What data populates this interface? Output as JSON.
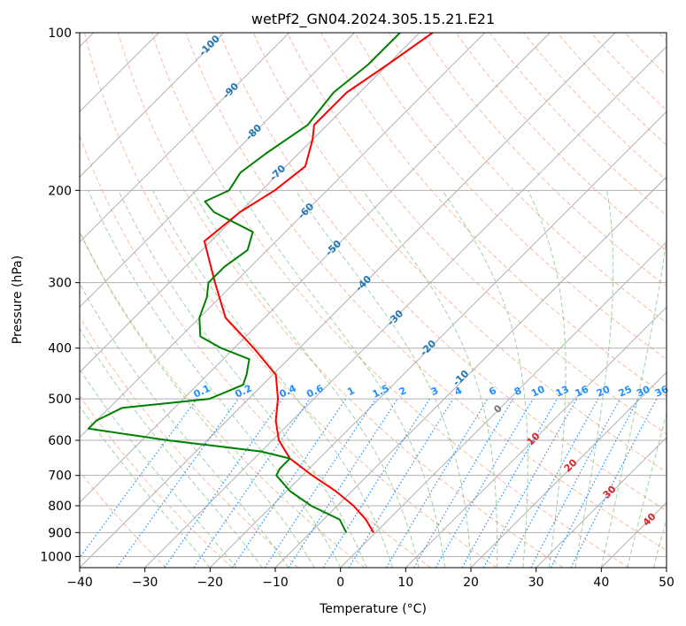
{
  "chart_data": {
    "type": "line",
    "subtype": "skew-t log-p",
    "title": "wetPf2_GN04.2024.305.15.21.E21",
    "xlabel": "Temperature (°C)",
    "ylabel": "Pressure (hPa)",
    "xlim": [
      -40,
      50
    ],
    "ylim": [
      1050,
      100
    ],
    "y_scale": "log",
    "grid": true,
    "x_ticks": [
      -40,
      -30,
      -20,
      -10,
      0,
      10,
      20,
      30,
      40,
      50
    ],
    "x_tick_labels": [
      "−40",
      "−30",
      "−20",
      "−10",
      "0",
      "10",
      "20",
      "30",
      "40",
      "50"
    ],
    "y_ticks": [
      1000,
      900,
      800,
      700,
      600,
      500,
      400,
      300,
      200,
      100
    ],
    "y_tick_labels": [
      "1000",
      "900",
      "800",
      "700",
      "600",
      "500",
      "400",
      "300",
      "200",
      "100"
    ],
    "colors": {
      "temperature": "#ff0000",
      "dewpoint": "#008000",
      "isotherm_label": "#1f77b4",
      "mixing_ratio": "#1e90ff",
      "dry_adiabat": "#f4a582",
      "moist_adiabat": "#2ca02c",
      "moist_label": "#d62728",
      "grid": "#b0b0b0"
    },
    "series": [
      {
        "kind": "temperature",
        "pressure": [
          900,
          850,
          800,
          750,
          700,
          650,
          600,
          550,
          500,
          450,
          400,
          350,
          300,
          250,
          220,
          200,
          180,
          160,
          150,
          130,
          115,
          100
        ],
        "values": [
          -0.3,
          -3.5,
          -7.5,
          -12.5,
          -18.5,
          -24.5,
          -29,
          -32.5,
          -35.5,
          -39.5,
          -47,
          -56,
          -63,
          -71,
          -70,
          -68,
          -67,
          -70,
          -72,
          -72,
          -70,
          -68
        ]
      },
      {
        "kind": "dewpoint",
        "pressure": [
          900,
          850,
          800,
          750,
          700,
          680,
          650,
          630,
          600,
          570,
          550,
          520,
          500,
          470,
          450,
          420,
          400,
          380,
          350,
          320,
          300,
          280,
          260,
          240,
          220,
          210,
          200,
          185,
          170,
          150,
          130,
          115,
          100
        ],
        "values": [
          -4.5,
          -7.5,
          -14,
          -19.5,
          -24,
          -24.5,
          -24.5,
          -30,
          -46,
          -60,
          -60,
          -58,
          -46,
          -43,
          -44,
          -46,
          -52,
          -57,
          -60,
          -62,
          -64,
          -64,
          -63,
          -65,
          -74,
          -77,
          -75,
          -76,
          -75,
          -73,
          -74,
          -73,
          -73
        ]
      }
    ],
    "isotherm_labels": [
      {
        "text": "-100",
        "value": -100
      },
      {
        "text": "-90",
        "value": -90
      },
      {
        "text": "-80",
        "value": -80
      },
      {
        "text": "-70",
        "value": -70
      },
      {
        "text": "-60",
        "value": -60
      },
      {
        "text": "-50",
        "value": -50
      },
      {
        "text": "-40",
        "value": -40
      },
      {
        "text": "-30",
        "value": -30
      },
      {
        "text": "-20",
        "value": -20
      },
      {
        "text": "-10",
        "value": -10
      }
    ],
    "mixing_ratio_labels": [
      "0.1",
      "0.2",
      "0.4",
      "0.6",
      "1",
      "1.5",
      "2",
      "3",
      "4",
      "6",
      "8",
      "10",
      "13",
      "16",
      "20",
      "25",
      "30",
      "36"
    ],
    "mixing_ratio_values": [
      0.1,
      0.2,
      0.4,
      0.6,
      1,
      1.5,
      2,
      3,
      4,
      6,
      8,
      10,
      13,
      16,
      20,
      25,
      30,
      36
    ],
    "moist_adiabat_labels": [
      {
        "text": "0",
        "value": 0
      },
      {
        "text": "10",
        "value": 10
      },
      {
        "text": "20",
        "value": 20
      },
      {
        "text": "30",
        "value": 30
      },
      {
        "text": "40",
        "value": 40
      }
    ]
  }
}
